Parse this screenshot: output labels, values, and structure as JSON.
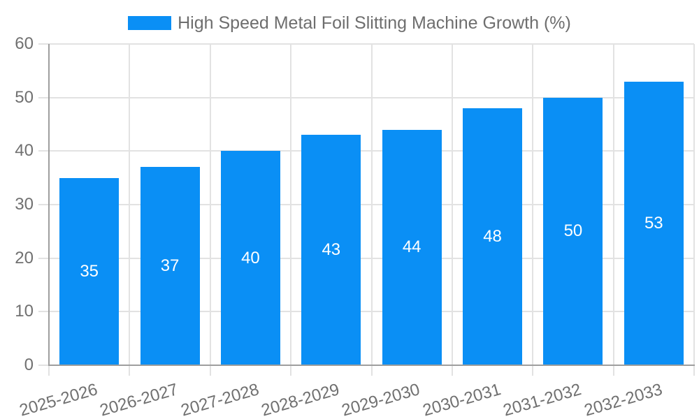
{
  "chart_data": {
    "type": "bar",
    "title": "High Speed Metal Foil Slitting Machine Growth (%)",
    "legend": [
      {
        "label": "High Speed Metal Foil Slitting Machine Growth (%)"
      }
    ],
    "legend_position": "top-center",
    "categories": [
      "2025-2026",
      "2026-2027",
      "2027-2028",
      "2028-2029",
      "2029-2030",
      "2030-2031",
      "2031-2032",
      "2032-2033"
    ],
    "values": [
      35,
      37,
      40,
      43,
      44,
      48,
      50,
      53
    ],
    "bar_labels": [
      "35",
      "37",
      "40",
      "43",
      "44",
      "48",
      "50",
      "53"
    ],
    "xlabel": "",
    "ylabel": "",
    "ylim": [
      0,
      60
    ],
    "yticks": [
      0,
      10,
      20,
      30,
      40,
      50,
      60
    ],
    "grid": true,
    "x_label_rotation_deg": -16,
    "colors": {
      "bar": "#0A8FF5",
      "bar_label_text": "#FFFFFF",
      "grid": "#E2E2E2",
      "axis": "#9E9E9E",
      "tick_text": "#707070",
      "legend_text": "#6E6E6E",
      "background": "#FFFFFF"
    }
  }
}
